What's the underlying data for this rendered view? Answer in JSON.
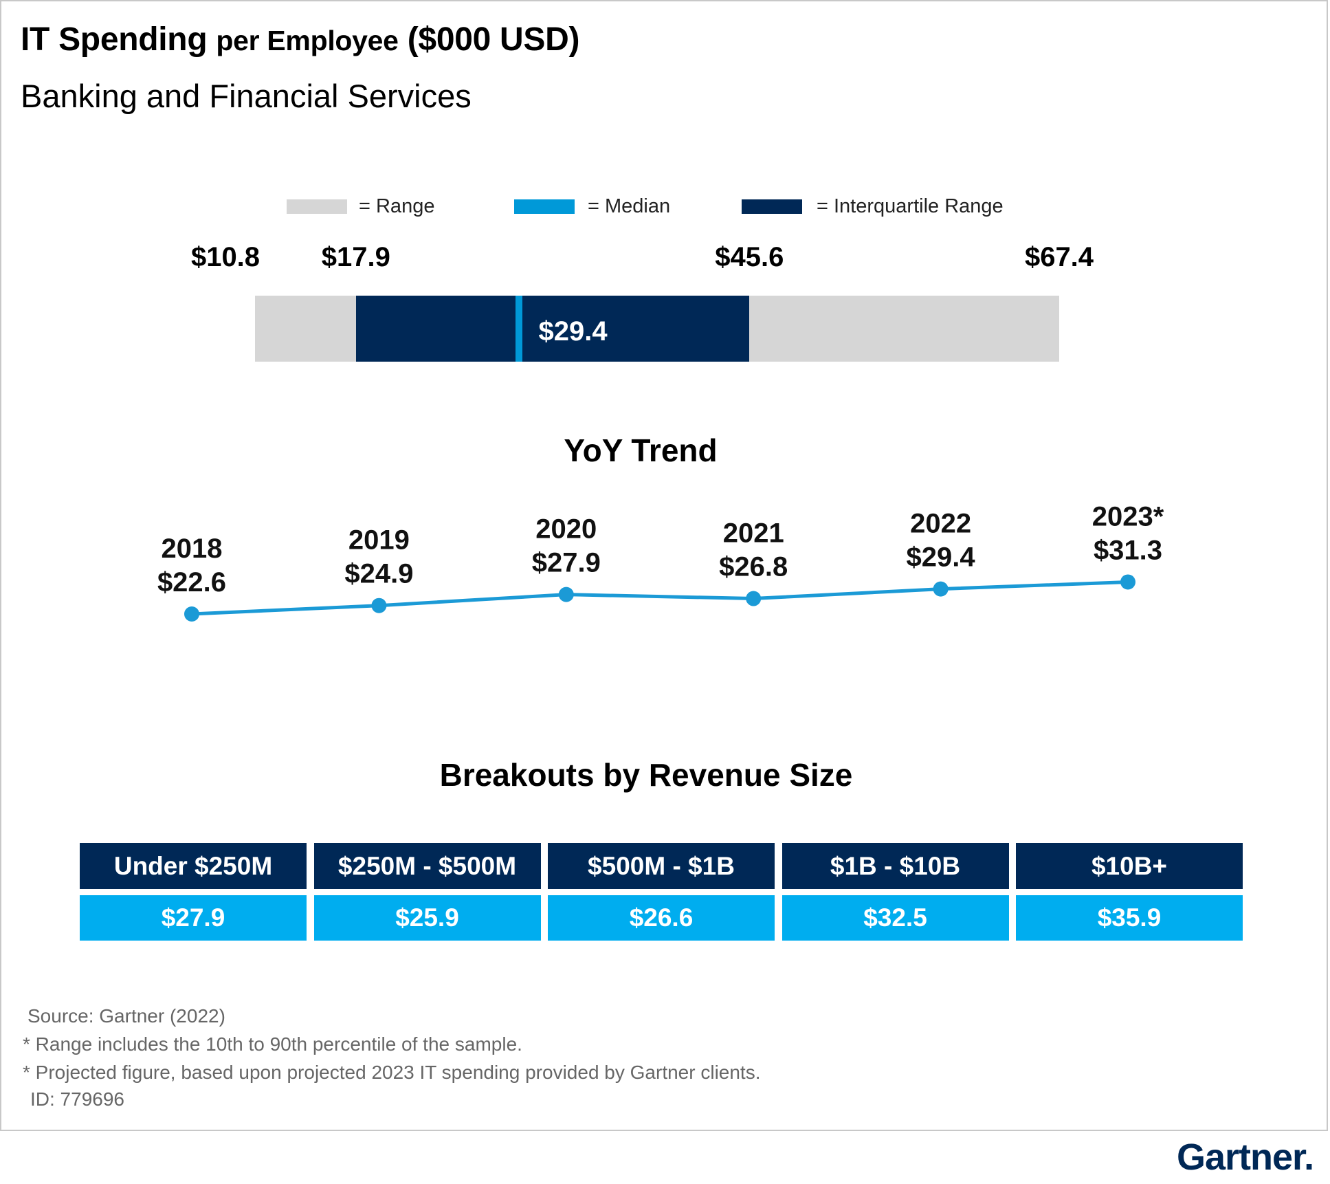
{
  "title": {
    "main": "IT Spending",
    "rest": "per Employee",
    "unit": "($000 USD)"
  },
  "subtitle": "Banking and Financial Services",
  "legend": [
    {
      "label": "= Range",
      "color": "#d6d6d6"
    },
    {
      "label": "= Median",
      "color": "#0099d8"
    },
    {
      "label": "= Interquartile Range",
      "color": "#002856"
    }
  ],
  "chart_data": [
    {
      "type": "bar",
      "title": "",
      "min": 10.8,
      "q1": 17.9,
      "median": 29.4,
      "q3": 45.6,
      "max": 67.4,
      "labels": {
        "min": "$10.8",
        "q1": "$17.9",
        "median": "$29.4",
        "q3": "$45.6",
        "max": "$67.4"
      },
      "colors": {
        "range": "#d6d6d6",
        "iqr": "#002856",
        "median": "#0099d8"
      }
    },
    {
      "type": "line",
      "title": "YoY Trend",
      "x": [
        "2018",
        "2019",
        "2020",
        "2021",
        "2022",
        "2023*"
      ],
      "values": [
        22.6,
        24.9,
        27.9,
        26.8,
        29.4,
        31.3
      ],
      "value_labels": [
        "$22.6",
        "$24.9",
        "$27.9",
        "$26.8",
        "$29.4",
        "$31.3"
      ],
      "color": "#1b9ad6"
    },
    {
      "type": "table",
      "title": "Breakouts by Revenue Size",
      "columns": [
        "Under $250M",
        "$250M - $500M",
        "$500M - $1B",
        "$1B - $10B",
        "$10B+"
      ],
      "values": [
        "$27.9",
        "$25.9",
        "$26.6",
        "$32.5",
        "$35.9"
      ],
      "colors": {
        "header": "#002856",
        "values": "#00adef"
      }
    }
  ],
  "notes": [
    "Source: Gartner (2022)",
    "* Range includes the 10th to 90th percentile of the sample.",
    "* Projected figure, based upon projected 2023 IT spending provided by Gartner clients.",
    "ID: 779696"
  ],
  "logo": {
    "text": "Gartner",
    "mark": "."
  }
}
